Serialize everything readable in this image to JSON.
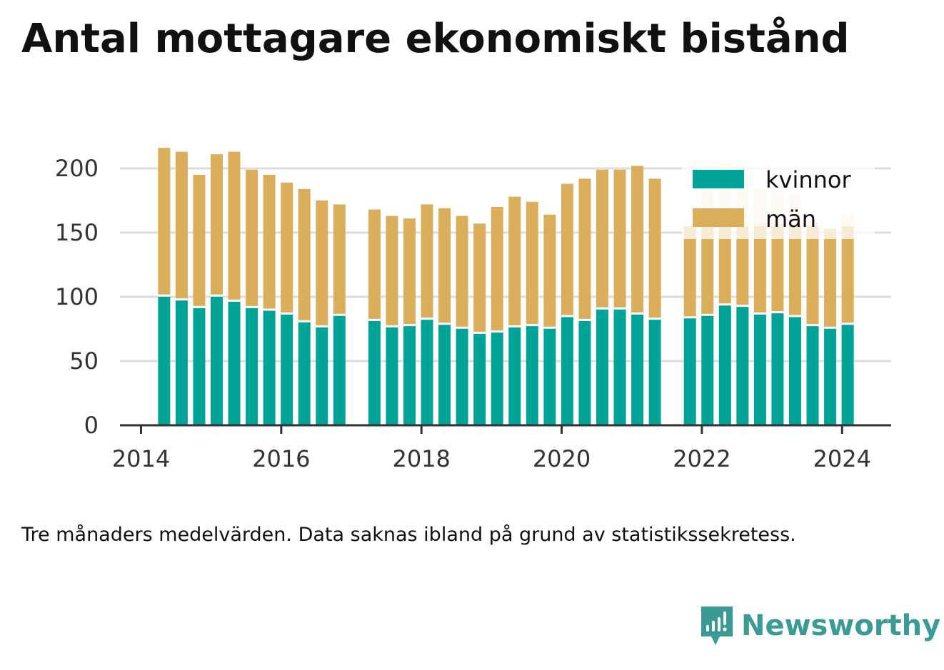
{
  "title": "Antal mottagare ekonomiskt bistånd",
  "caption": "Tre månaders medelvärden. Data saknas ibland på grund av statistikssekretess.",
  "brand": {
    "name": "Newsworthy",
    "icon": "newsworthy-logo-icon",
    "color": "#3a9b94"
  },
  "colors": {
    "kvinnor": "#00a398",
    "man": "#dbae5c",
    "grid": "#dddddd",
    "axis": "#333333"
  },
  "chart_data": {
    "type": "bar",
    "stacked": true,
    "title": "Antal mottagare ekonomiskt bistånd",
    "xlabel": "",
    "ylabel": "",
    "ylim": [
      0,
      220
    ],
    "yticks": [
      0,
      50,
      100,
      150,
      200
    ],
    "xlim": [
      2013.7,
      2024.7
    ],
    "xticks": [
      2014,
      2016,
      2018,
      2020,
      2022,
      2024
    ],
    "grid": true,
    "legend": {
      "position": "top-right",
      "entries": [
        "kvinnor",
        "män"
      ]
    },
    "x": [
      2014.33,
      2014.58,
      2014.83,
      2015.08,
      2015.33,
      2015.58,
      2015.83,
      2016.08,
      2016.33,
      2016.58,
      2016.83,
      2017.33,
      2017.58,
      2017.83,
      2018.08,
      2018.33,
      2018.58,
      2018.83,
      2019.08,
      2019.33,
      2019.58,
      2019.83,
      2020.08,
      2020.33,
      2020.58,
      2020.83,
      2021.08,
      2021.33,
      2021.83,
      2022.08,
      2022.33,
      2022.58,
      2022.83,
      2023.08,
      2023.33,
      2023.58,
      2023.83,
      2024.08
    ],
    "series": [
      {
        "name": "kvinnor",
        "values": [
          101,
          98,
          92,
          101,
          97,
          92,
          90,
          87,
          81,
          77,
          86,
          82,
          77,
          78,
          83,
          79,
          76,
          72,
          73,
          77,
          78,
          76,
          85,
          82,
          91,
          91,
          87,
          83,
          84,
          86,
          94,
          93,
          87,
          88,
          85,
          78,
          76,
          79
        ]
      },
      {
        "name": "män",
        "values": [
          115,
          115,
          103,
          110,
          116,
          107,
          105,
          102,
          103,
          98,
          86,
          86,
          86,
          83,
          89,
          90,
          87,
          85,
          97,
          101,
          96,
          88,
          103,
          110,
          108,
          108,
          115,
          109,
          71,
          69,
          61,
          62,
          68,
          67,
          70,
          77,
          77,
          76
        ]
      }
    ],
    "faded_totals": [
      null,
      null,
      null,
      null,
      null,
      null,
      null,
      null,
      null,
      null,
      null,
      null,
      null,
      null,
      null,
      null,
      null,
      null,
      null,
      null,
      null,
      null,
      null,
      null,
      null,
      null,
      null,
      null,
      null,
      192,
      205,
      196,
      184,
      183,
      180,
      158,
      null,
      164
    ]
  }
}
